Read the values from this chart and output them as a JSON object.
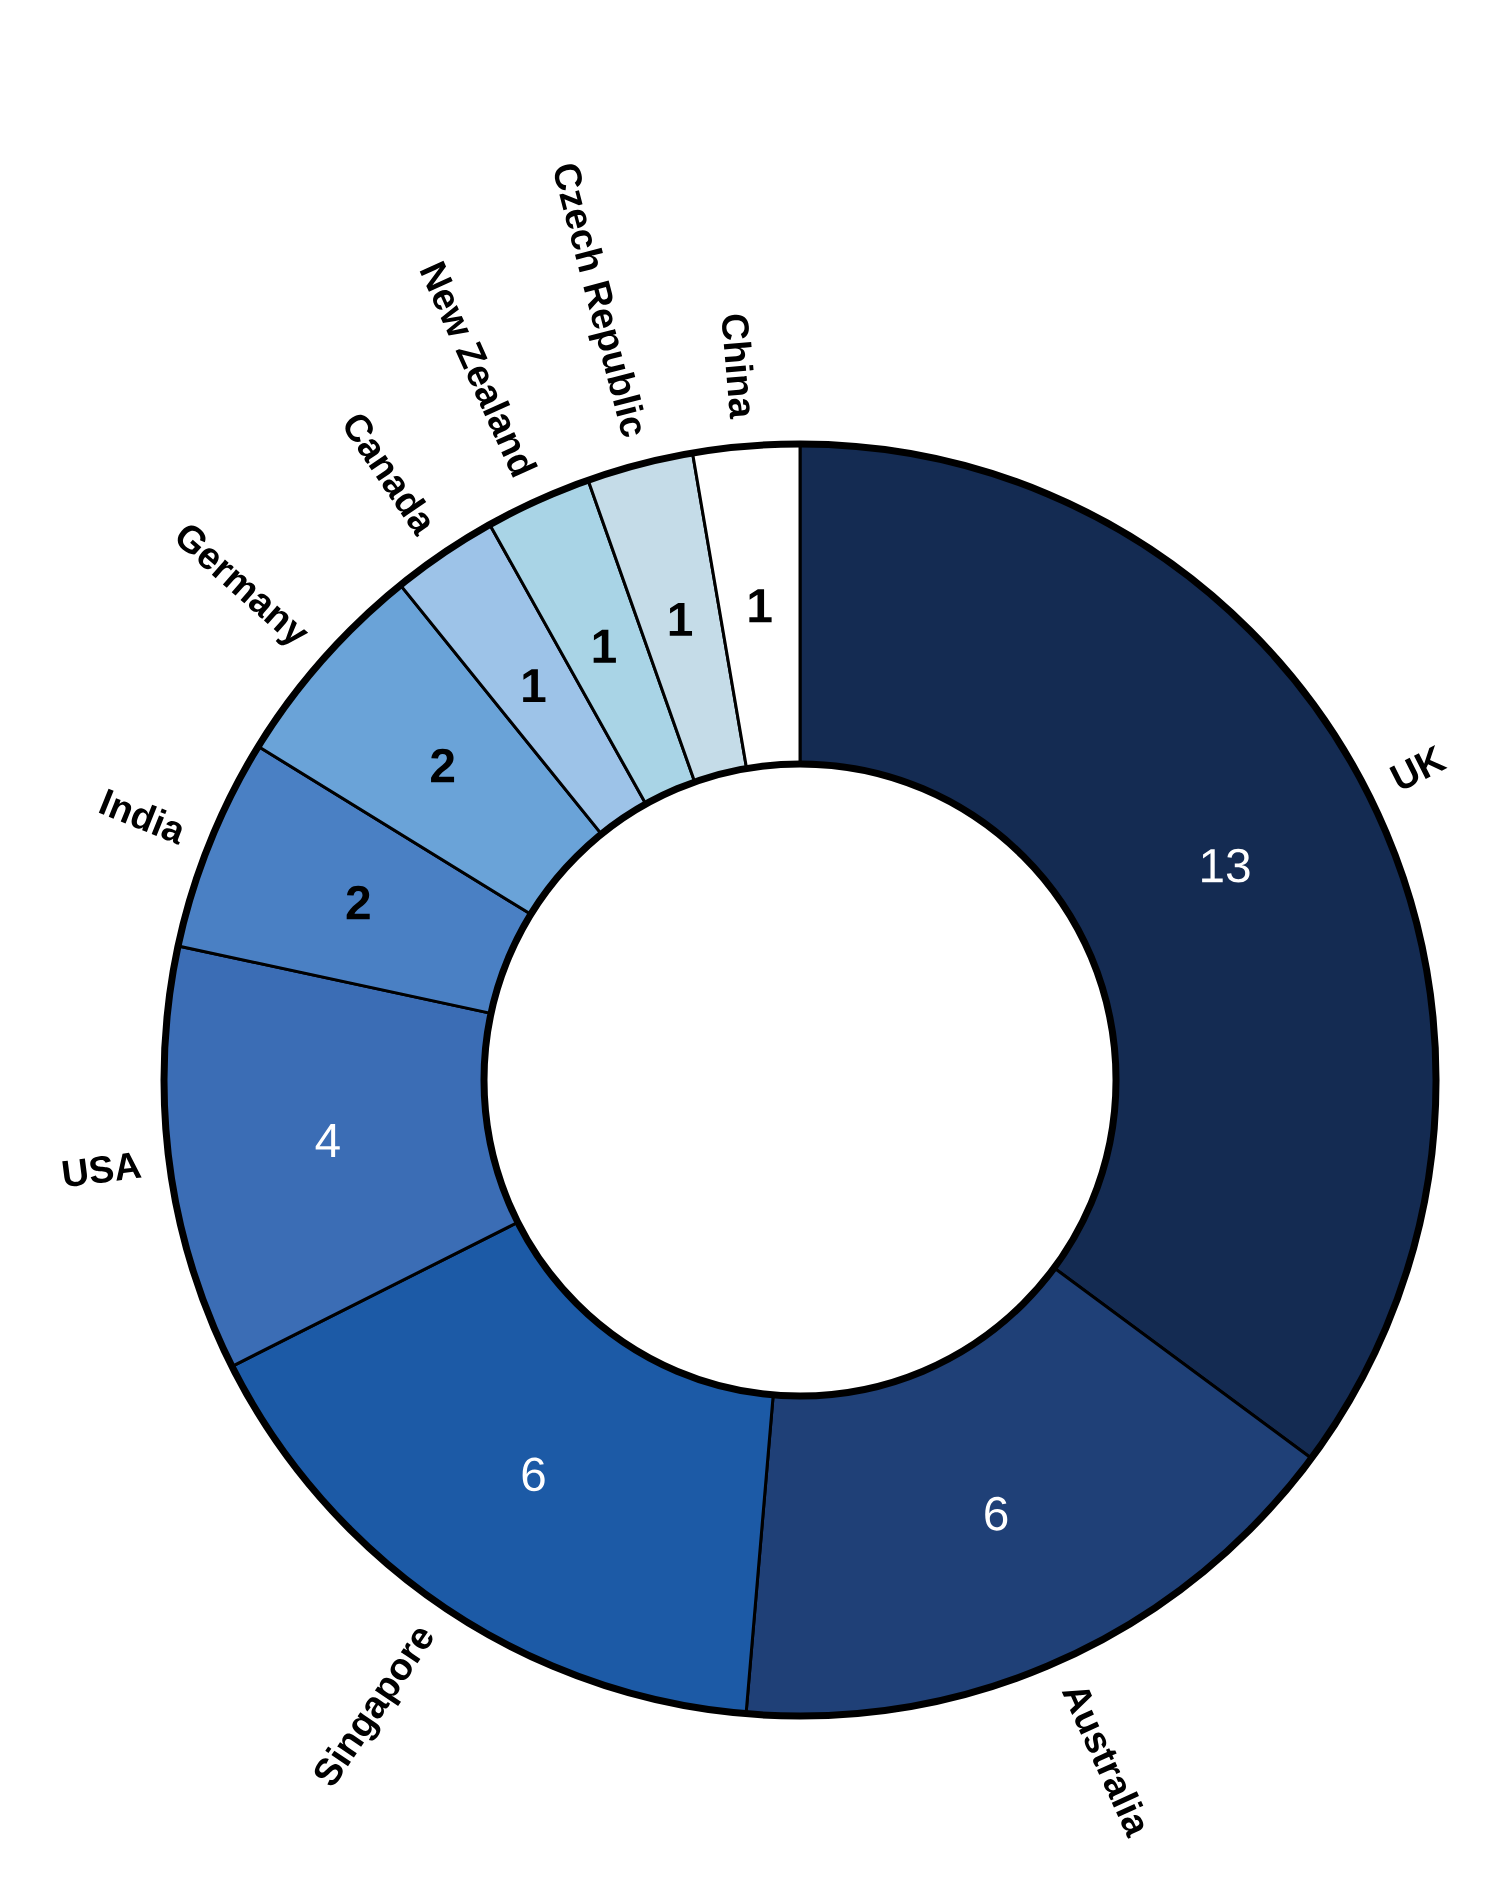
{
  "chart_data": {
    "type": "donut",
    "categories": [
      "UK",
      "Australia",
      "Singapore",
      "USA",
      "India",
      "Germany",
      "Canada",
      "New Zealand",
      "Czech Republic",
      "China"
    ],
    "values": [
      13,
      6,
      6,
      4,
      2,
      2,
      1,
      1,
      1,
      1
    ],
    "colors": [
      "#142b52",
      "#1f4077",
      "#1c5aa6",
      "#3b6db5",
      "#4a80c4",
      "#6aa3d8",
      "#9dc3e8",
      "#a9d4e6",
      "#c5dce8",
      "#ffffff"
    ],
    "data_labels": true
  }
}
